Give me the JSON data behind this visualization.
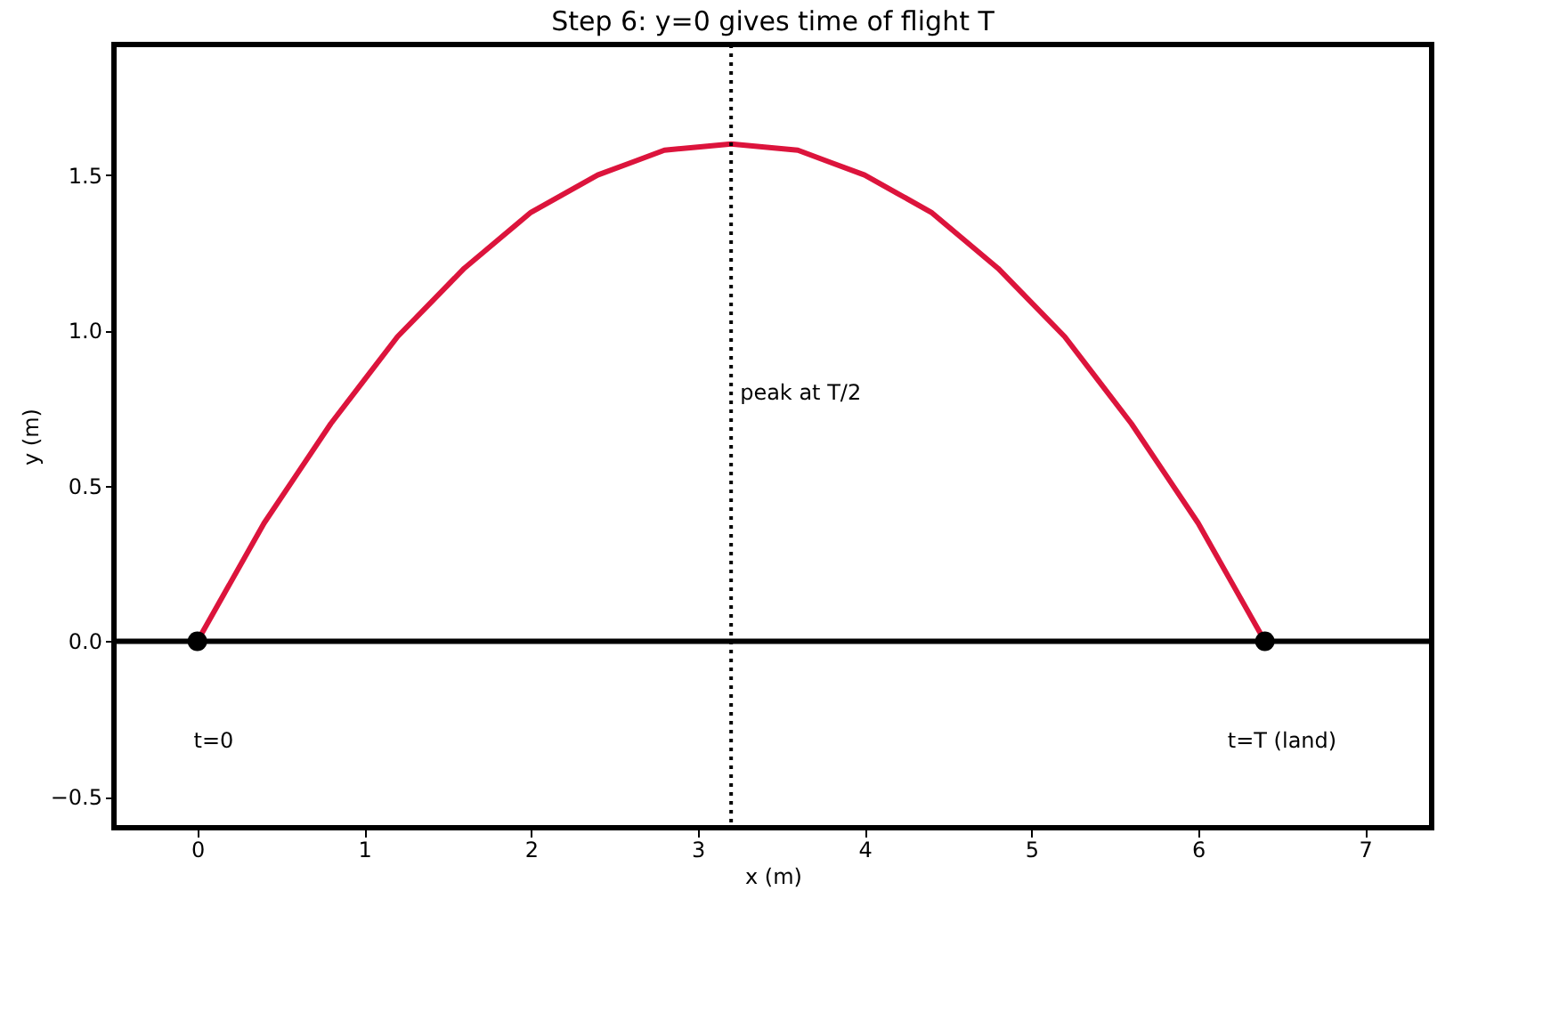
{
  "chart_data": {
    "type": "line",
    "title": "Step 6: y=0 gives time of flight T",
    "xlabel": "x (m)",
    "ylabel": "y (m)",
    "xlim": [
      -0.5,
      7.4
    ],
    "ylim": [
      -0.6,
      1.92
    ],
    "xticks": [
      0,
      1,
      2,
      3,
      4,
      5,
      6,
      7
    ],
    "yticks": [
      {
        "value": -0.5,
        "label": "−0.5"
      },
      {
        "value": 0,
        "label": "0.0"
      },
      {
        "value": 0.5,
        "label": "0.5"
      },
      {
        "value": 1,
        "label": "1.0"
      },
      {
        "value": 1.5,
        "label": "1.5"
      }
    ],
    "grid": false,
    "series": [
      {
        "color": "#dc143c",
        "line_style": "solid",
        "marker": "none",
        "x": [
          0,
          0.2,
          0.4,
          0.6,
          0.8,
          1.0,
          1.2,
          1.4,
          1.6,
          1.8,
          2.0,
          2.2,
          2.4,
          2.6,
          2.8,
          3.0,
          3.2,
          3.4,
          3.6,
          3.8,
          4.0,
          4.2,
          4.4,
          4.6,
          4.8,
          5.0,
          5.2,
          5.4,
          5.6,
          5.8,
          6.0,
          6.2,
          6.4
        ],
        "values": [
          0,
          0.19,
          0.38,
          0.54,
          0.7,
          0.84,
          0.98,
          1.09,
          1.2,
          1.29,
          1.38,
          1.44,
          1.5,
          1.54,
          1.58,
          1.59,
          1.6,
          1.59,
          1.58,
          1.54,
          1.5,
          1.44,
          1.38,
          1.29,
          1.2,
          1.09,
          0.98,
          0.84,
          0.7,
          0.54,
          0.38,
          0.19,
          0
        ]
      },
      {
        "type": "scatter",
        "color": "#000000",
        "marker": "circle",
        "x": [
          0,
          6.4
        ],
        "values": [
          0,
          0
        ]
      }
    ],
    "ref_lines": [
      {
        "axis": "y",
        "value": 0,
        "color": "#000000",
        "line_style": "solid"
      },
      {
        "axis": "x",
        "value": 3.2,
        "color": "#000000",
        "line_style": "dotted"
      }
    ],
    "annotations": [
      {
        "text": "peak at T/2",
        "x": 3.2,
        "y": 0.8
      },
      "t=0",
      "t=T (land)"
    ]
  }
}
